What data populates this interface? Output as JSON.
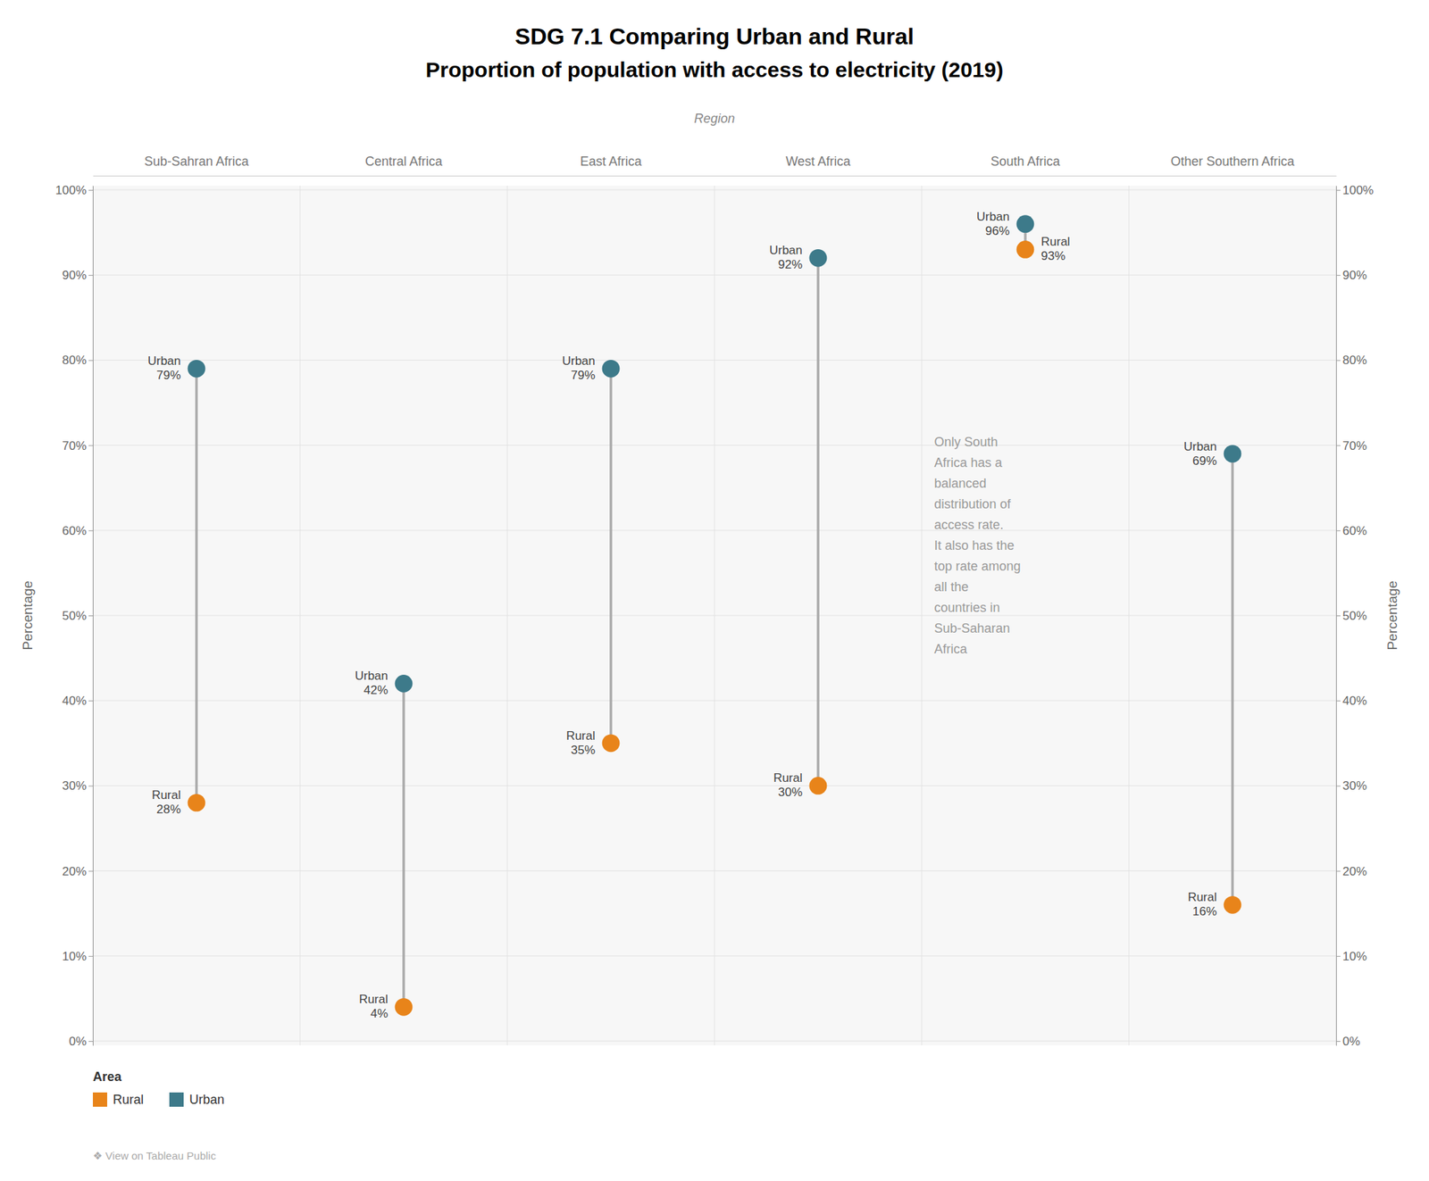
{
  "chart_data": {
    "type": "dumbbell",
    "title": "SDG 7.1 Comparing Urban and Rural",
    "subtitle": "Proportion of population with access to electricity (2019)",
    "xlabel": "Region",
    "ylabel": "Percentage",
    "categories": [
      "Sub-Sahran Africa",
      "Central Africa",
      "East Africa",
      "West Africa",
      "South Africa",
      "Other Southern Africa"
    ],
    "series": [
      {
        "name": "Rural",
        "color": "#e8841a",
        "values": [
          0.28,
          0.04,
          0.35,
          0.3,
          0.93,
          0.16
        ],
        "value_labels": [
          "28%",
          "4%",
          "35%",
          "30%",
          "93%",
          "16%"
        ]
      },
      {
        "name": "Urban",
        "color": "#3d7a8a",
        "values": [
          0.79,
          0.42,
          0.79,
          0.92,
          0.96,
          0.69
        ],
        "value_labels": [
          "79%",
          "42%",
          "79%",
          "92%",
          "96%",
          "69%"
        ]
      }
    ],
    "color": "#aaaaaa",
    "marker": "circle",
    "annotation": [
      "Only South",
      "Africa has a",
      "balanced",
      "distribution of",
      "access rate.",
      "It also has the",
      "top rate among",
      "all the",
      "countries in",
      "Sub-Saharan",
      "Africa"
    ],
    "legend": "bottom",
    "legend_title": "Area",
    "footer": "❖ View on Tableau Public",
    "ylim": [
      -0.005,
      1.005
    ],
    "yticks": [
      {
        "value": 0,
        "label": "0%"
      },
      {
        "value": 0.1,
        "label": "10%"
      },
      {
        "value": 0.2,
        "label": "20%"
      },
      {
        "value": 0.3,
        "label": "30%"
      },
      {
        "value": 0.4,
        "label": "40%"
      },
      {
        "value": 0.5,
        "label": "50%"
      },
      {
        "value": 0.6,
        "label": "60%"
      },
      {
        "value": 0.7,
        "label": "70%"
      },
      {
        "value": 0.8,
        "label": "80%"
      },
      {
        "value": 0.9,
        "label": "90%"
      },
      {
        "value": 1,
        "label": "100%"
      }
    ],
    "grid": true,
    "data_labels": true
  }
}
